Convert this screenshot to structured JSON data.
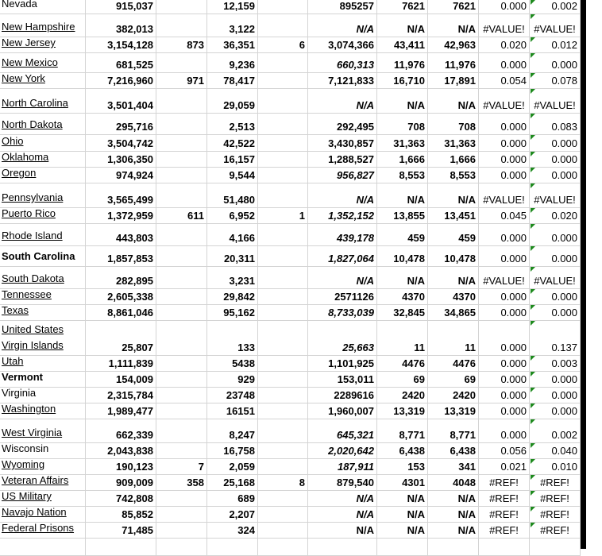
{
  "rows": [
    {
      "name": "Nevada",
      "link": false,
      "bold": false,
      "b": "915,037",
      "c": "",
      "d": "12,159",
      "e": "",
      "f": "895257",
      "f_italic": false,
      "g": "7621",
      "h": "7621",
      "i": "0.000",
      "j": "0.002"
    },
    {
      "name": "New Hampshire",
      "link": true,
      "bold": false,
      "b": "382,013",
      "c": "",
      "d": "3,122",
      "e": "",
      "f": "N/A",
      "f_italic": true,
      "g": "N/A",
      "h": "N/A",
      "i": "#VALUE!",
      "j": "#VALUE!"
    },
    {
      "name": "New Jersey",
      "link": true,
      "bold": false,
      "b": "3,154,128",
      "c": "873",
      "d": "36,351",
      "e": "6",
      "f": "3,074,366",
      "f_italic": false,
      "g": "43,411",
      "h": "42,963",
      "i": "0.020",
      "j": "0.012"
    },
    {
      "name": "New Mexico",
      "link": true,
      "bold": false,
      "b": "681,525",
      "c": "",
      "d": "9,236",
      "e": "",
      "f": "660,313",
      "f_italic": true,
      "g": "11,976",
      "h": "11,976",
      "i": "0.000",
      "j": "0.000"
    },
    {
      "name": "New York",
      "link": true,
      "bold": false,
      "b": "7,216,960",
      "c": "971",
      "d": "78,417",
      "e": "",
      "f": "7,121,833",
      "f_italic": false,
      "g": "16,710",
      "h": "17,891",
      "i": "0.054",
      "j": "0.078"
    },
    {
      "name": "North Carolina",
      "link": true,
      "bold": false,
      "b": "3,501,404",
      "c": "",
      "d": "29,059",
      "e": "",
      "f": "N/A",
      "f_italic": true,
      "g": "N/A",
      "h": "N/A",
      "i": "#VALUE!",
      "j": "#VALUE!"
    },
    {
      "name": "North Dakota",
      "link": true,
      "bold": false,
      "b": "295,716",
      "c": "",
      "d": "2,513",
      "e": "",
      "f": "292,495",
      "f_italic": false,
      "g": "708",
      "h": "708",
      "i": "0.000",
      "j": "0.083"
    },
    {
      "name": "Ohio",
      "link": true,
      "bold": false,
      "b": "3,504,742",
      "c": "",
      "d": "42,522",
      "e": "",
      "f": "3,430,857",
      "f_italic": false,
      "g": "31,363",
      "h": "31,363",
      "i": "0.000",
      "j": "0.000"
    },
    {
      "name": "Oklahoma",
      "link": true,
      "bold": false,
      "b": "1,306,350",
      "c": "",
      "d": "16,157",
      "e": "",
      "f": "1,288,527",
      "f_italic": false,
      "g": "1,666",
      "h": "1,666",
      "i": "0.000",
      "j": "0.000"
    },
    {
      "name": "Oregon",
      "link": true,
      "bold": false,
      "b": "974,924",
      "c": "",
      "d": "9,544",
      "e": "",
      "f": "956,827",
      "f_italic": true,
      "g": "8,553",
      "h": "8,553",
      "i": "0.000",
      "j": "0.000"
    },
    {
      "name": "Pennsylvania",
      "link": true,
      "bold": false,
      "b": "3,565,499",
      "c": "",
      "d": "51,480",
      "e": "",
      "f": "N/A",
      "f_italic": true,
      "g": "N/A",
      "h": "N/A",
      "i": "#VALUE!",
      "j": "#VALUE!"
    },
    {
      "name": "Puerto Rico",
      "link": true,
      "bold": false,
      "b": "1,372,959",
      "c": "611",
      "d": "6,952",
      "e": "1",
      "f": "1,352,152",
      "f_italic": true,
      "g": "13,855",
      "h": "13,451",
      "i": "0.045",
      "j": "0.020"
    },
    {
      "name": "Rhode Island",
      "link": true,
      "bold": false,
      "b": "443,803",
      "c": "",
      "d": "4,166",
      "e": "",
      "f": "439,178",
      "f_italic": true,
      "g": "459",
      "h": "459",
      "i": "0.000",
      "j": "0.000"
    },
    {
      "name": "South Carolina",
      "link": false,
      "bold": true,
      "b": "1,857,853",
      "c": "",
      "d": "20,311",
      "e": "",
      "f": "1,827,064",
      "f_italic": true,
      "g": "10,478",
      "h": "10,478",
      "i": "0.000",
      "j": "0.000"
    },
    {
      "name": "South Dakota",
      "link": true,
      "bold": false,
      "b": "282,895",
      "c": "",
      "d": "3,231",
      "e": "",
      "f": "N/A",
      "f_italic": true,
      "g": "N/A",
      "h": "N/A",
      "i": "#VALUE!",
      "j": "#VALUE!"
    },
    {
      "name": "Tennessee",
      "link": true,
      "bold": false,
      "b": "2,605,338",
      "c": "",
      "d": "29,842",
      "e": "",
      "f": "2571126",
      "f_italic": false,
      "g": "4370",
      "h": "4370",
      "i": "0.000",
      "j": "0.000"
    },
    {
      "name": "Texas",
      "link": true,
      "bold": false,
      "b": "8,861,046",
      "c": "",
      "d": "95,162",
      "e": "",
      "f": "8,733,039",
      "f_italic": true,
      "g": "32,845",
      "h": "34,865",
      "i": "0.000",
      "j": "0.000"
    },
    {
      "name": "United States Virgin Islands",
      "link": true,
      "bold": false,
      "b": "25,807",
      "c": "",
      "d": "133",
      "e": "",
      "f": "25,663",
      "f_italic": true,
      "g": "11",
      "h": "11",
      "i": "0.000",
      "j": "0.137"
    },
    {
      "name": "Utah",
      "link": true,
      "bold": false,
      "b": "1,111,839",
      "c": "",
      "d": "5438",
      "e": "",
      "f": "1,101,925",
      "f_italic": false,
      "g": "4476",
      "h": "4476",
      "i": "0.000",
      "j": "0.003"
    },
    {
      "name": "Vermont",
      "link": false,
      "bold": true,
      "b": "154,009",
      "c": "",
      "d": "929",
      "e": "",
      "f": "153,011",
      "f_italic": false,
      "g": "69",
      "h": "69",
      "i": "0.000",
      "j": "0.000"
    },
    {
      "name": "Virginia",
      "link": false,
      "bold": false,
      "b": "2,315,784",
      "c": "",
      "d": "23748",
      "e": "",
      "f": "2289616",
      "f_italic": false,
      "g": "2420",
      "h": "2420",
      "i": "0.000",
      "j": "0.000"
    },
    {
      "name": "Washington",
      "link": true,
      "bold": false,
      "b": "1,989,477",
      "c": "",
      "d": "16151",
      "e": "",
      "f": "1,960,007",
      "f_italic": false,
      "g": "13,319",
      "h": "13,319",
      "i": "0.000",
      "j": "0.000"
    },
    {
      "name": "West Virginia",
      "link": true,
      "bold": false,
      "b": "662,339",
      "c": "",
      "d": "8,247",
      "e": "",
      "f": "645,321",
      "f_italic": true,
      "g": "8,771",
      "h": "8,771",
      "i": "0.000",
      "j": "0.002"
    },
    {
      "name": "Wisconsin",
      "link": false,
      "bold": false,
      "b": "2,043,838",
      "c": "",
      "d": "16,758",
      "e": "",
      "f": "2,020,642",
      "f_italic": true,
      "g": "6,438",
      "h": "6,438",
      "i": "0.056",
      "j": "0.040"
    },
    {
      "name": "Wyoming",
      "link": true,
      "bold": false,
      "b": "190,123",
      "c": "7",
      "d": "2,059",
      "e": "",
      "f": "187,911",
      "f_italic": true,
      "g": "153",
      "h": "341",
      "i": "0.021",
      "j": "0.010"
    },
    {
      "name": "Veteran Affairs",
      "link": true,
      "bold": false,
      "b": "909,009",
      "c": "358",
      "d": "25,168",
      "e": "8",
      "f": "879,540",
      "f_italic": false,
      "g": "4301",
      "h": "4048",
      "i": "#REF!",
      "j": "#REF!"
    },
    {
      "name": "US Military",
      "link": true,
      "bold": false,
      "b": "742,808",
      "c": "",
      "d": "689",
      "e": "",
      "f": "N/A",
      "f_italic": true,
      "g": "N/A",
      "h": "N/A",
      "i": "#REF!",
      "j": "#REF!"
    },
    {
      "name": "Navajo Nation",
      "link": true,
      "bold": false,
      "b": "85,852",
      "c": "",
      "d": "2,207",
      "e": "",
      "f": "N/A",
      "f_italic": true,
      "g": "N/A",
      "h": "N/A",
      "i": "#REF!",
      "j": "#REF!"
    },
    {
      "name": "Federal Prisons",
      "link": true,
      "bold": false,
      "b": "71,485",
      "c": "",
      "d": "324",
      "e": "",
      "f": "N/A",
      "f_italic": false,
      "g": "N/A",
      "h": "N/A",
      "i": "#REF!",
      "j": "#REF!"
    },
    {
      "name": "",
      "link": false,
      "bold": false,
      "b": "",
      "c": "",
      "d": "",
      "e": "",
      "f": "",
      "f_italic": false,
      "g": "",
      "h": "",
      "i": "",
      "j": ""
    }
  ],
  "indicator_color": "#1e8a1e"
}
